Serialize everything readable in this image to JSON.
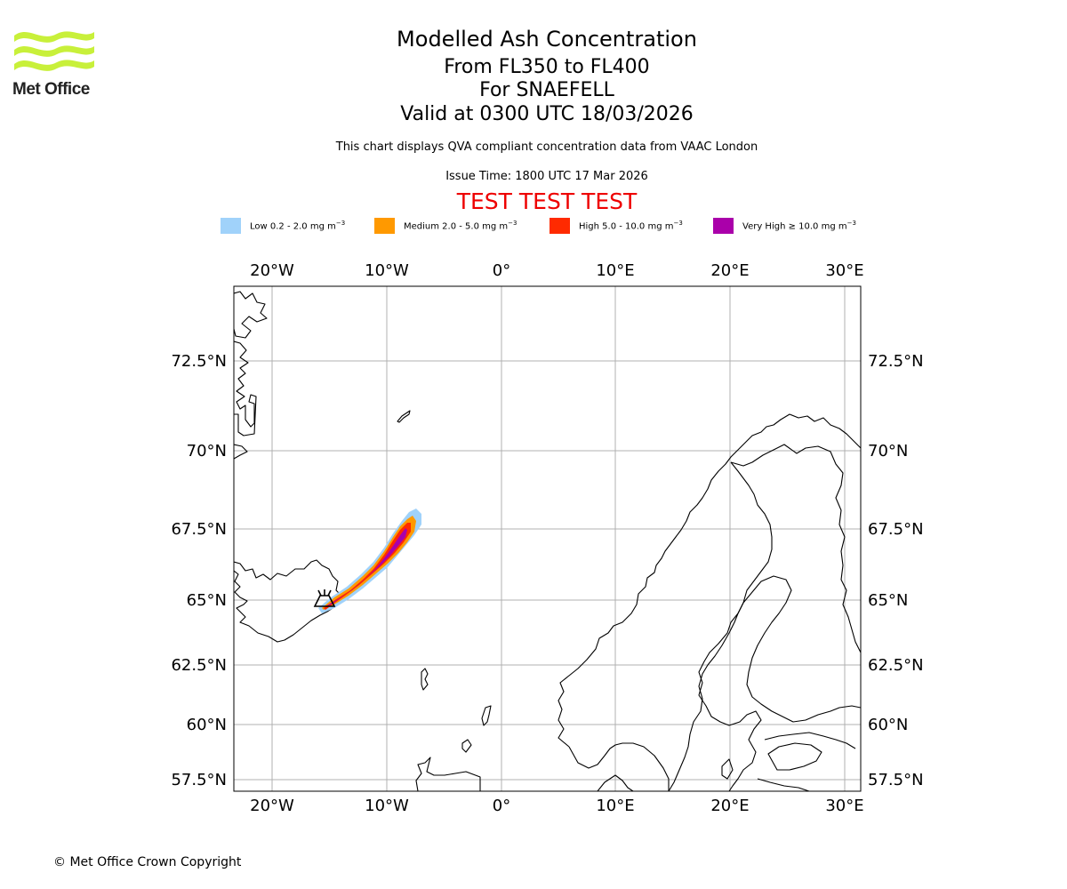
{
  "logo": {
    "name": "Met Office"
  },
  "header": {
    "title": "Modelled Ash Concentration",
    "flight_levels": "From FL350 to FL400",
    "volcano": "For SNAEFELL",
    "valid_time": "Valid at 0300 UTC 18/03/2026",
    "description": "This chart displays QVA compliant concentration data from VAAC London",
    "issue_time": "Issue Time: 1800 UTC 17 Mar 2026",
    "test_banner": "TEST TEST TEST"
  },
  "legend": {
    "items": [
      {
        "label": "Low 0.2 - 2.0 mg m",
        "unit_exp": "−3",
        "color": "#a0d2fa"
      },
      {
        "label": "Medium 2.0 - 5.0 mg m",
        "unit_exp": "−3",
        "color": "#ff9900"
      },
      {
        "label": "High 5.0 - 10.0 mg m",
        "unit_exp": "−3",
        "color": "#ff2a00"
      },
      {
        "label": "Very High ≥ 10.0 mg m",
        "unit_exp": "−3",
        "color": "#aa00aa"
      }
    ]
  },
  "map": {
    "lon_ticks": [
      "20°W",
      "10°W",
      "0°",
      "10°E",
      "20°E",
      "30°E"
    ],
    "lat_ticks": [
      "72.5°N",
      "70°N",
      "67.5°N",
      "65°N",
      "62.5°N",
      "60°N",
      "57.5°N"
    ],
    "volcano_marker": "volcano-icon",
    "plume_colors": {
      "low": "#a0d2fa",
      "medium": "#ff9900",
      "high": "#ff2a00",
      "very_high": "#aa00aa"
    }
  },
  "footer": {
    "copyright": "© Met Office Crown Copyright"
  }
}
